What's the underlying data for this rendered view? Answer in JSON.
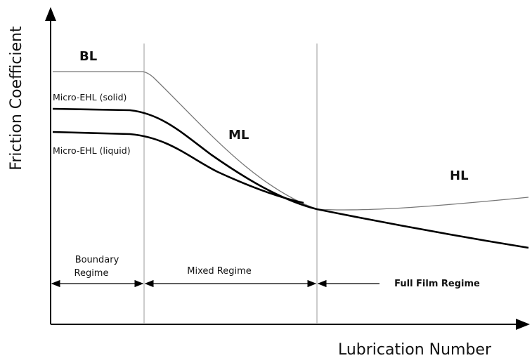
{
  "axes": {
    "y_label": "Friction Coefficient",
    "x_label": "Lubrication Number"
  },
  "regions": {
    "boundary": "BL",
    "mixed": "ML",
    "hydrodynamic": "HL"
  },
  "curves": {
    "solid": "Micro-EHL (solid)",
    "liquid": "Micro-EHL (liquid)"
  },
  "regimes": {
    "boundary": [
      "Boundary",
      "Regime"
    ],
    "mixed": "Mixed Regime",
    "full_film": "Full Film Regime"
  }
}
